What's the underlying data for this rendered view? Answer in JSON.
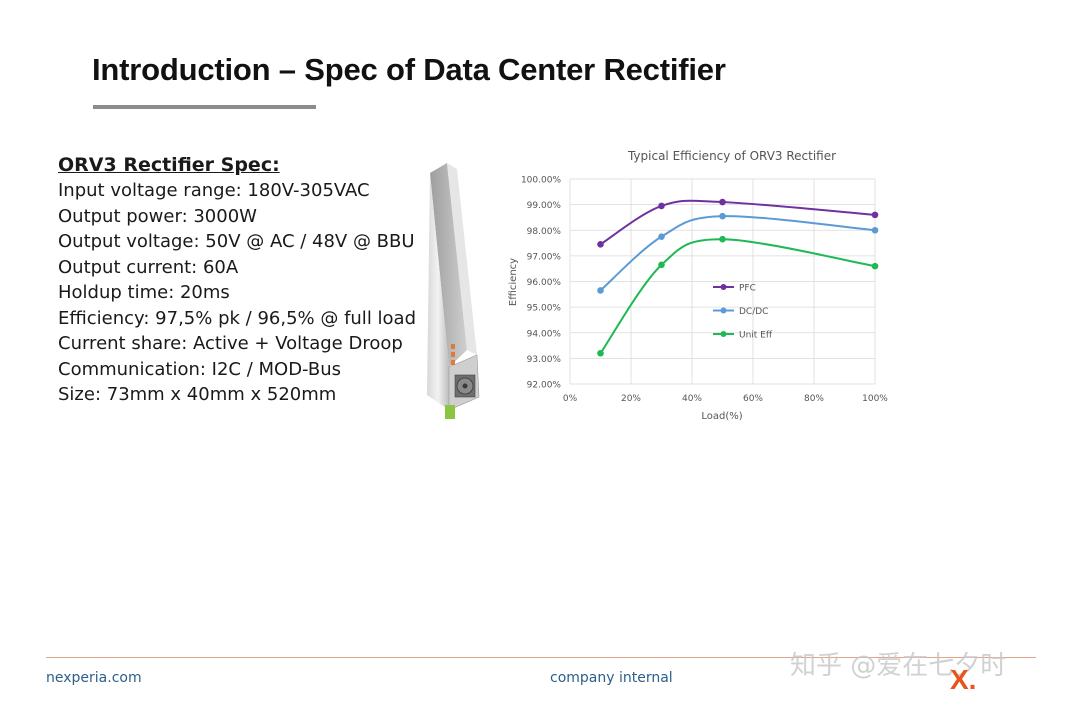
{
  "slide": {
    "title": "Introduction – Spec of Data Center Rectifier"
  },
  "spec": {
    "heading": "ORV3 Rectifier Spec:",
    "lines": [
      "Input voltage range: 180V-305VAC",
      "Output power: 3000W",
      "Output voltage: 50V @ AC / 48V @ BBU",
      "Output current: 60A",
      "Holdup time: 20ms",
      "Efficiency: 97,5% pk / 96,5% @ full load",
      "Current share: Active + Voltage Droop",
      "Communication: I2C / MOD-Bus",
      "Size: 73mm x 40mm x 520mm"
    ]
  },
  "chart_data": {
    "type": "line",
    "title": "Typical Efficiency of ORV3 Rectifier",
    "xlabel": "Load(%)",
    "ylabel": "Efficiency",
    "xlim": [
      0,
      100
    ],
    "ylim": [
      92,
      100
    ],
    "x_ticks": [
      "0%",
      "20%",
      "40%",
      "60%",
      "80%",
      "100%"
    ],
    "y_ticks": [
      "92.00%",
      "93.00%",
      "94.00%",
      "95.00%",
      "96.00%",
      "97.00%",
      "98.00%",
      "99.00%",
      "100.00%"
    ],
    "grid": true,
    "legend_position": "center",
    "series": [
      {
        "name": "PFC",
        "color": "#7030a0",
        "x": [
          10,
          30,
          50,
          100
        ],
        "y": [
          97.45,
          98.95,
          99.1,
          98.6
        ]
      },
      {
        "name": "DC/DC",
        "color": "#5b9bd5",
        "x": [
          10,
          30,
          50,
          100
        ],
        "y": [
          95.65,
          97.75,
          98.55,
          98.0
        ]
      },
      {
        "name": "Unit Eff",
        "color": "#1db954",
        "x": [
          10,
          30,
          50,
          100
        ],
        "y": [
          93.2,
          96.65,
          97.65,
          96.6
        ]
      }
    ]
  },
  "footer": {
    "website": "nexperia.com",
    "classification": "company internal",
    "watermark": "知乎 @爱在七夕时",
    "logo_text": "X."
  },
  "colors": {
    "footer_rule": "#e0a487",
    "footer_text": "#2c5f8a",
    "logo": "#e8551c"
  }
}
